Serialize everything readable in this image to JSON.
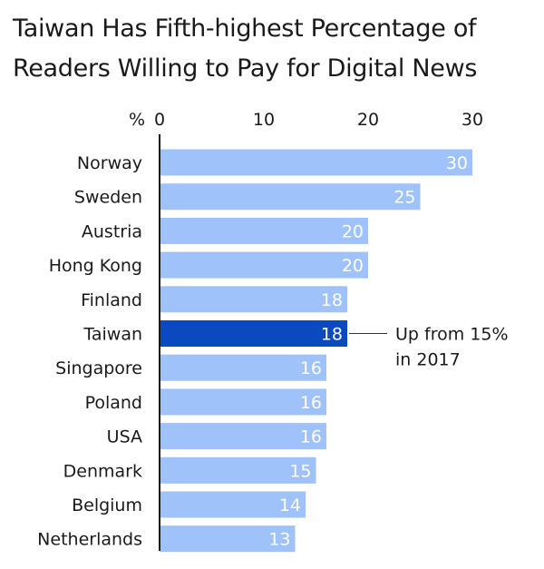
{
  "title": "Taiwan Has Fifth-highest Percentage of Readers Willing to Pay for Digital News",
  "colors": {
    "bar": "#9fc2fb",
    "highlight": "#0a49bf",
    "axis": "#1a1a1a",
    "annotation_line": "#333333"
  },
  "chart_data": {
    "type": "bar",
    "orientation": "horizontal",
    "unit_label": "%",
    "xlim": [
      0,
      30
    ],
    "ticks": [
      "0",
      "10",
      "20",
      "30"
    ],
    "tick_values": [
      0,
      10,
      20,
      30
    ],
    "grid": false,
    "categories": [
      "Norway",
      "Sweden",
      "Austria",
      "Hong Kong",
      "Finland",
      "Taiwan",
      "Singapore",
      "Poland",
      "USA",
      "Denmark",
      "Belgium",
      "Netherlands"
    ],
    "values": [
      30,
      25,
      20,
      20,
      18,
      18,
      16,
      16,
      16,
      15,
      14,
      13
    ],
    "highlight_category": "Taiwan",
    "annotation": {
      "category": "Taiwan",
      "lines": [
        "Up from 15%",
        "in 2017"
      ]
    }
  }
}
